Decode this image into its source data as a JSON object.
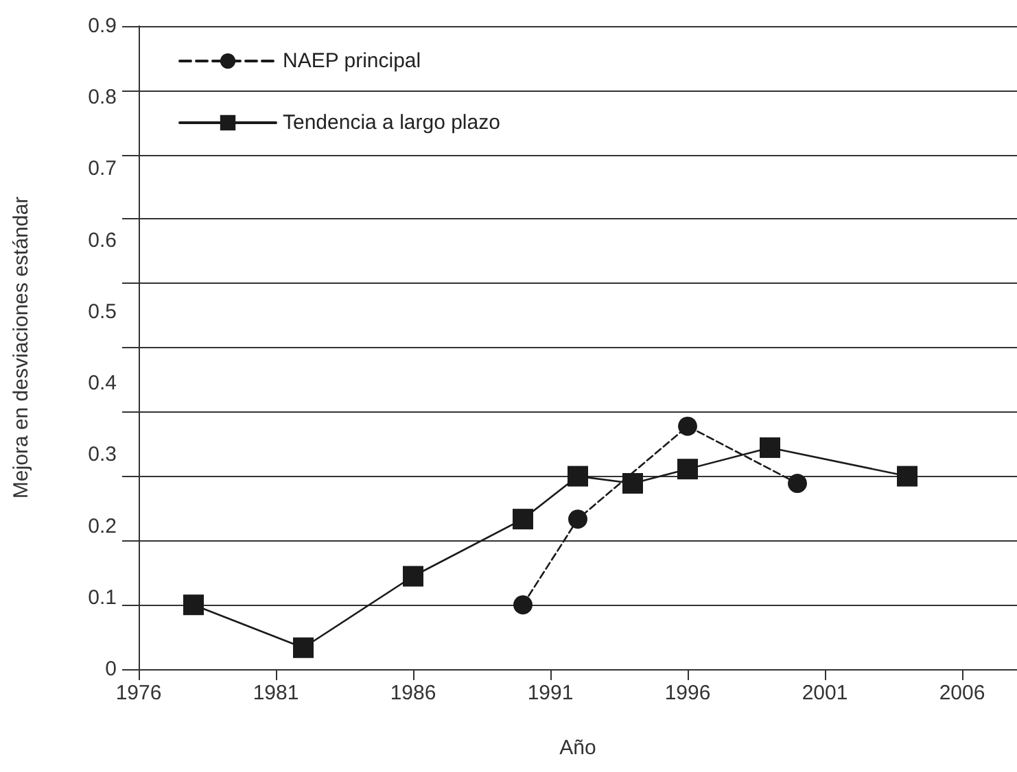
{
  "chart_data": {
    "type": "line",
    "xlabel": "Año",
    "ylabel": "Mejora en desviaciones estándar",
    "series": [
      {
        "name": "NAEP principal",
        "color": "#1a1a1a",
        "marker": "circle",
        "line_style": "dashed",
        "x": [
          1990,
          1992,
          1996,
          2000
        ],
        "values": [
          0.09,
          0.21,
          0.34,
          0.26
        ]
      },
      {
        "name": "Tendencia a largo plazo",
        "color": "#1a1a1a",
        "marker": "square",
        "line_style": "solid",
        "x": [
          1978,
          1982,
          1986,
          1990,
          1992,
          1994,
          1996,
          1999,
          2004
        ],
        "values": [
          0.09,
          0.03,
          0.13,
          0.21,
          0.27,
          0.26,
          0.28,
          0.31,
          0.27
        ]
      }
    ],
    "xlim": [
      1976,
      2008
    ],
    "xticks": [
      1976,
      1981,
      1986,
      1991,
      1996,
      2001,
      2006
    ],
    "ylim": [
      0,
      0.9
    ],
    "yticks": [
      0,
      {
        "value": 0.09,
        "label": null
      },
      0.1,
      {
        "value": 0.18,
        "label": null
      },
      0.2,
      {
        "value": 0.27,
        "label": null
      },
      0.3,
      {
        "value": 0.36,
        "label": null
      },
      0.4,
      {
        "value": 0.45,
        "label": null
      },
      0.5,
      {
        "value": 0.54,
        "label": null
      },
      0.6,
      {
        "value": 0.63,
        "label": null
      },
      0.7,
      {
        "value": 0.72,
        "label": null
      },
      0.8,
      {
        "value": 0.81,
        "label": null
      },
      0.9
    ],
    "grid": "y",
    "legend": "top left"
  }
}
